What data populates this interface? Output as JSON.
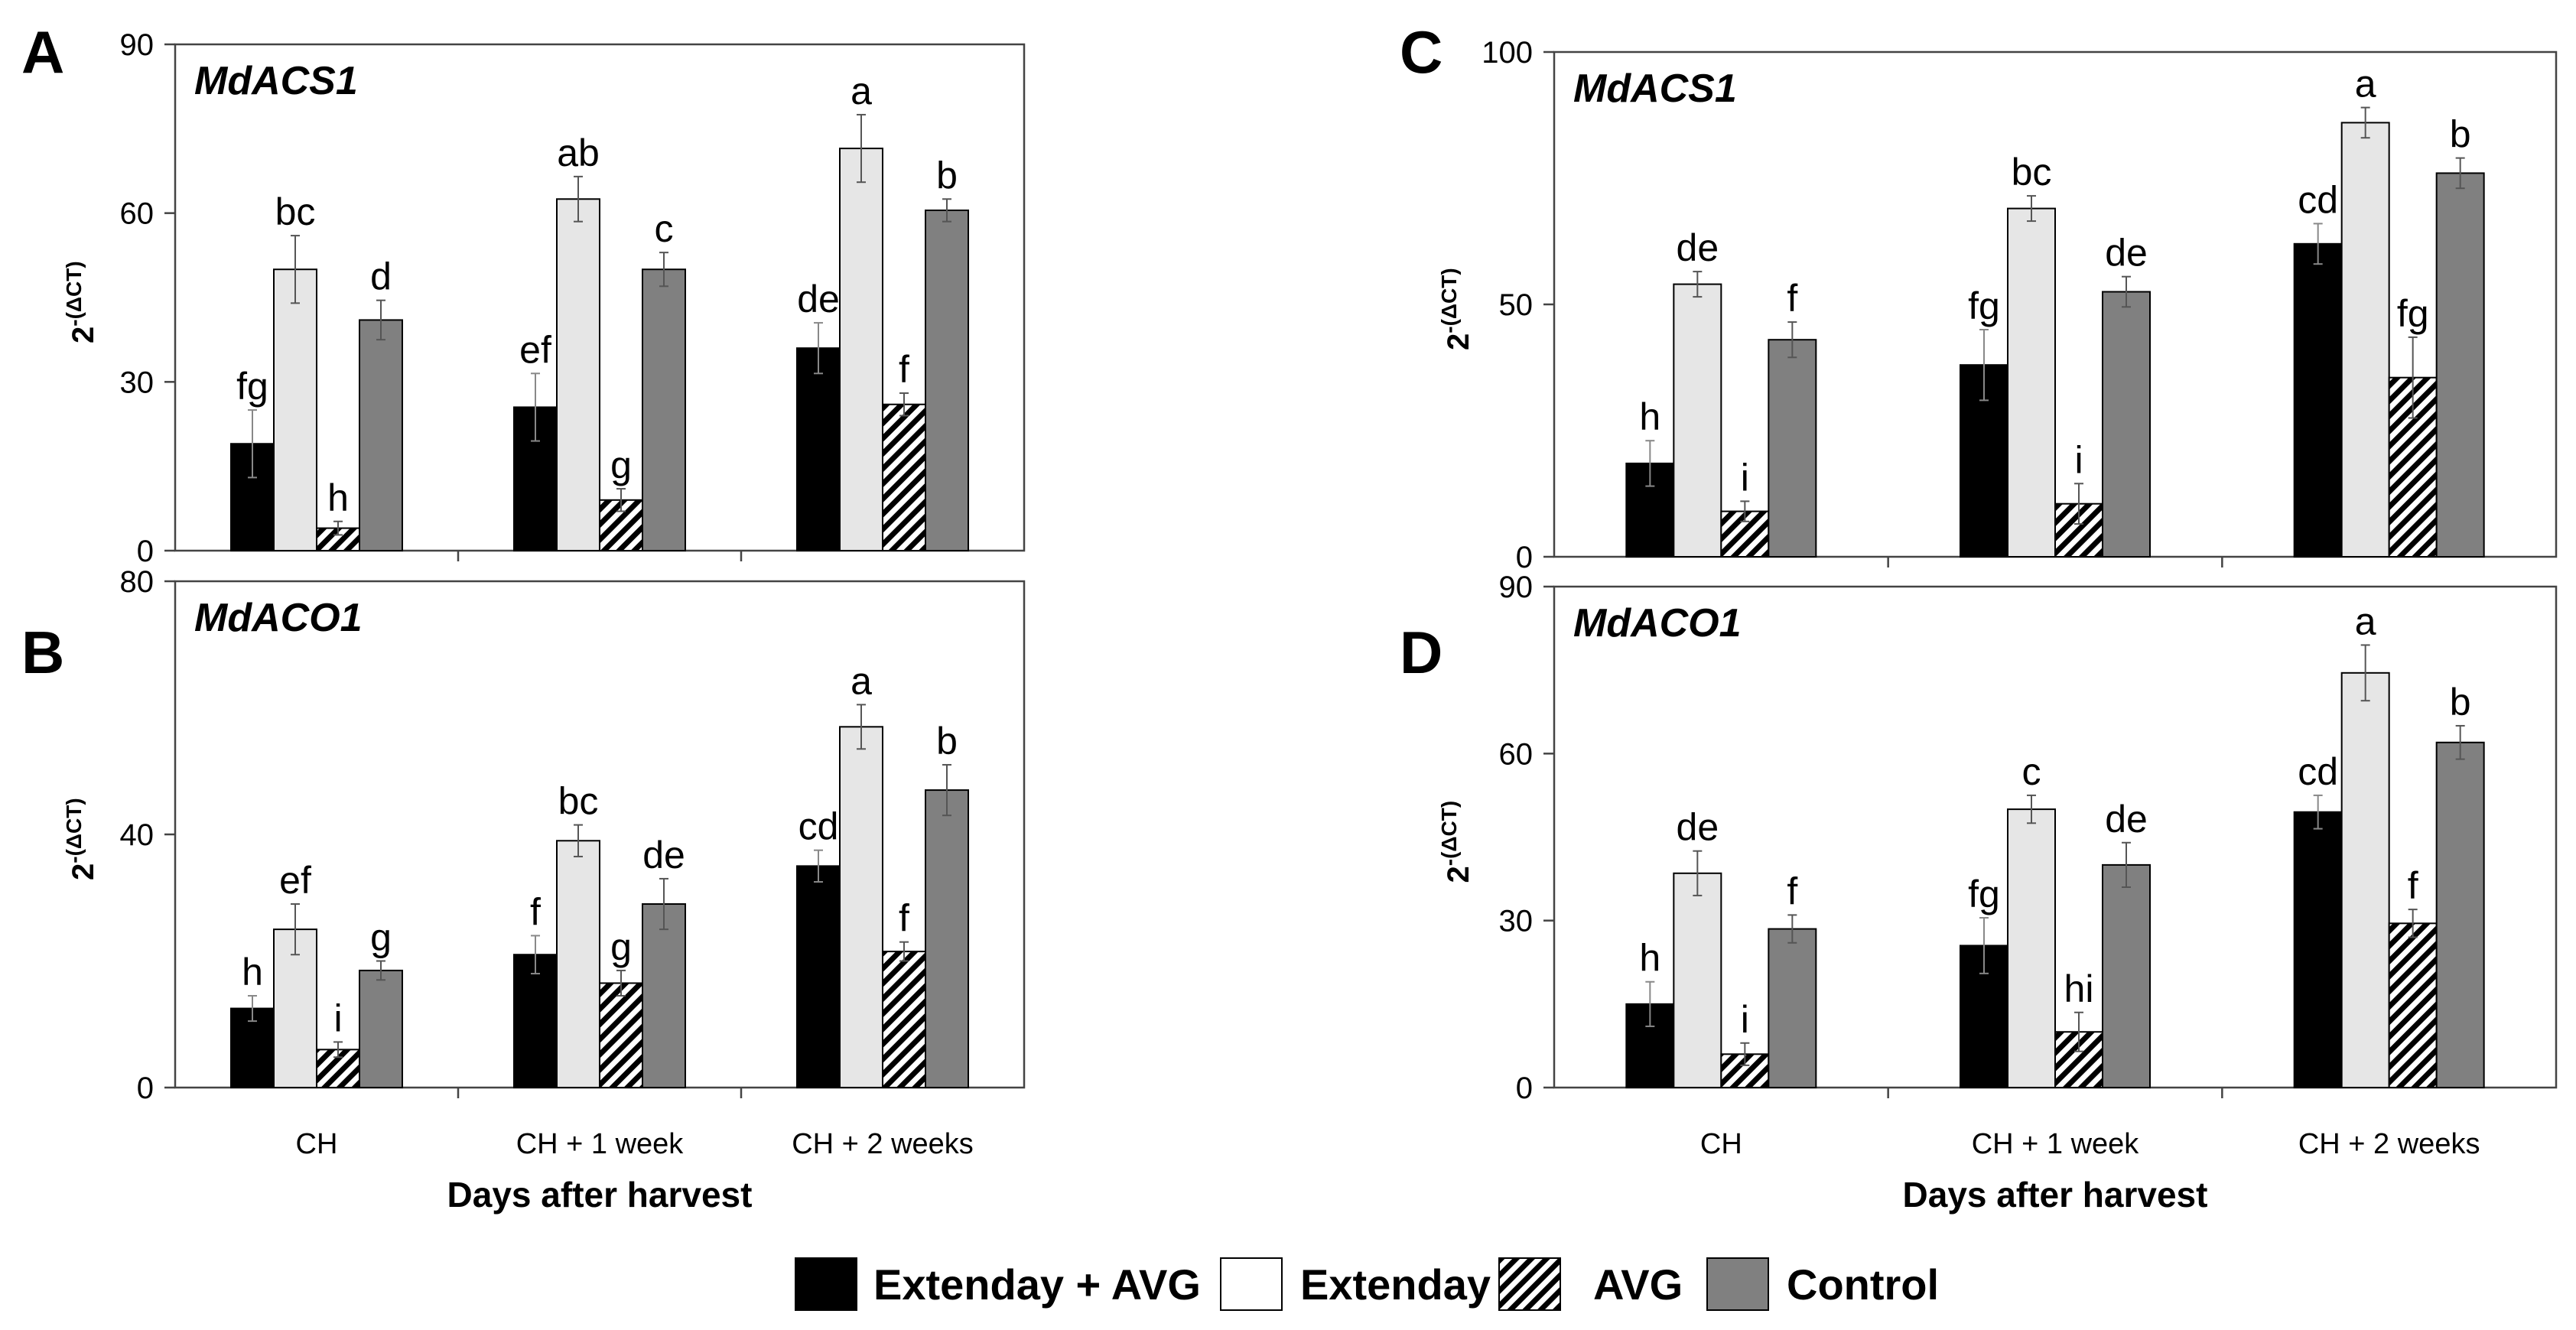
{
  "legend": {
    "items": [
      {
        "label": "Extenday + AVG",
        "fill": "#000000",
        "pattern": "solid"
      },
      {
        "label": "Extenday",
        "fill": "#ffffff",
        "pattern": "solid"
      },
      {
        "label": "AVG",
        "fill": "#ffffff",
        "pattern": "hatch"
      },
      {
        "label": "Control",
        "fill": "#808080",
        "pattern": "solid"
      }
    ]
  },
  "series_styles": [
    {
      "name": "Extenday + AVG",
      "fill": "#000000",
      "pattern": "solid"
    },
    {
      "name": "Extenday",
      "fill": "#e6e6e6",
      "pattern": "solid"
    },
    {
      "name": "AVG",
      "fill": "#ffffff",
      "pattern": "hatch"
    },
    {
      "name": "Control",
      "fill": "#808080",
      "pattern": "solid"
    }
  ],
  "chart_data": [
    {
      "panel": "A",
      "type": "bar",
      "title": "MdACS1",
      "ylabel": "2-(ΔCT)",
      "ylim": [
        0,
        90
      ],
      "yticks": [
        "0",
        "30",
        "60",
        "90"
      ],
      "categories": [
        "CH",
        "CH + 1 week",
        "CH + 2 weeks"
      ],
      "xlabel": "",
      "series": [
        {
          "name": "Extenday + AVG",
          "values": [
            19,
            25.5,
            36
          ],
          "errors": [
            6,
            6,
            4.5
          ],
          "labels": [
            "fg",
            "ef",
            "de"
          ]
        },
        {
          "name": "Extenday",
          "values": [
            50,
            62.5,
            71.5
          ],
          "errors": [
            6,
            4,
            6
          ],
          "labels": [
            "bc",
            "ab",
            "a"
          ]
        },
        {
          "name": "AVG",
          "values": [
            4,
            9,
            26
          ],
          "errors": [
            1.2,
            2,
            2
          ],
          "labels": [
            "h",
            "g",
            "f"
          ]
        },
        {
          "name": "Control",
          "values": [
            41,
            50,
            60.5
          ],
          "errors": [
            3.5,
            3,
            2
          ],
          "labels": [
            "d",
            "c",
            "b"
          ]
        }
      ]
    },
    {
      "panel": "B",
      "type": "bar",
      "title": "MdACO1",
      "ylabel": "2-(ΔCT)",
      "ylim": [
        0,
        80
      ],
      "yticks": [
        "0",
        "40",
        "80"
      ],
      "categories": [
        "CH",
        "CH + 1 week",
        "CH + 2 weeks"
      ],
      "xlabel": "Days after harvest",
      "series": [
        {
          "name": "Extenday + AVG",
          "values": [
            12.5,
            21,
            35
          ],
          "errors": [
            2,
            3,
            2.5
          ],
          "labels": [
            "h",
            "f",
            "cd"
          ]
        },
        {
          "name": "Extenday",
          "values": [
            25,
            39,
            57
          ],
          "errors": [
            4,
            2.5,
            3.5
          ],
          "labels": [
            "ef",
            "bc",
            "a"
          ]
        },
        {
          "name": "AVG",
          "values": [
            6,
            16.5,
            21.5
          ],
          "errors": [
            1.2,
            2,
            1.5
          ],
          "labels": [
            "i",
            "g",
            "f"
          ]
        },
        {
          "name": "Control",
          "values": [
            18.5,
            29,
            47
          ],
          "errors": [
            1.5,
            4,
            4
          ],
          "labels": [
            "g",
            "de",
            "b"
          ]
        }
      ]
    },
    {
      "panel": "C",
      "type": "bar",
      "title": "MdACS1",
      "ylabel": "2-(ΔCT)",
      "ylim": [
        0,
        100
      ],
      "yticks": [
        "0",
        "50",
        "100"
      ],
      "categories": [
        "CH",
        "CH + 1 week",
        "CH + 2 weeks"
      ],
      "xlabel": "",
      "series": [
        {
          "name": "Extenday + AVG",
          "values": [
            18.5,
            38,
            62
          ],
          "errors": [
            4.5,
            7,
            4
          ],
          "labels": [
            "h",
            "fg",
            "cd"
          ]
        },
        {
          "name": "Extenday",
          "values": [
            54,
            69,
            86
          ],
          "errors": [
            2.5,
            2.5,
            3
          ],
          "labels": [
            "de",
            "bc",
            "a"
          ]
        },
        {
          "name": "AVG",
          "values": [
            9,
            10.5,
            35.5
          ],
          "errors": [
            2,
            4,
            8
          ],
          "labels": [
            "i",
            "i",
            "fg"
          ]
        },
        {
          "name": "Control",
          "values": [
            43,
            52.5,
            76
          ],
          "errors": [
            3.5,
            3,
            3
          ],
          "labels": [
            "f",
            "de",
            "b"
          ]
        }
      ]
    },
    {
      "panel": "D",
      "type": "bar",
      "title": "MdACO1",
      "ylabel": "2-(ΔCT)",
      "ylim": [
        0,
        90
      ],
      "yticks": [
        "0",
        "30",
        "60",
        "90"
      ],
      "categories": [
        "CH",
        "CH + 1 week",
        "CH + 2 weeks"
      ],
      "xlabel": "Days after harvest",
      "series": [
        {
          "name": "Extenday + AVG",
          "values": [
            15,
            25.5,
            49.5
          ],
          "errors": [
            4,
            5,
            3
          ],
          "labels": [
            "h",
            "fg",
            "cd"
          ]
        },
        {
          "name": "Extenday",
          "values": [
            38.5,
            50,
            74.5
          ],
          "errors": [
            4,
            2.5,
            5
          ],
          "labels": [
            "de",
            "c",
            "a"
          ]
        },
        {
          "name": "AVG",
          "values": [
            6,
            10,
            29.5
          ],
          "errors": [
            2,
            3.5,
            2.5
          ],
          "labels": [
            "i",
            "hi",
            "f"
          ]
        },
        {
          "name": "Control",
          "values": [
            28.5,
            40,
            62
          ],
          "errors": [
            2.5,
            4,
            3
          ],
          "labels": [
            "f",
            "de",
            "b"
          ]
        }
      ]
    }
  ]
}
